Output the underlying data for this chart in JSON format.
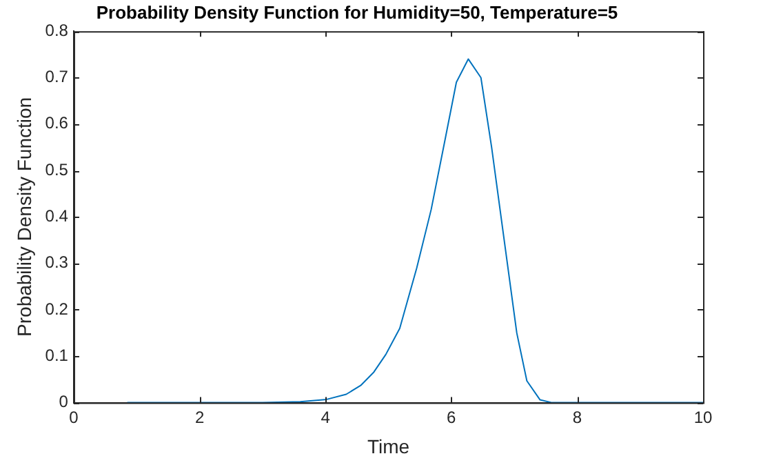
{
  "chart_data": {
    "type": "line",
    "title": "Probability Density Function for Humidity=50, Temperature=5",
    "xlabel": "Time",
    "ylabel": "Probability Density Function",
    "x": [
      0.85,
      2,
      3,
      3.6,
      4.02,
      4.33,
      4.56,
      4.77,
      4.96,
      5.18,
      5.45,
      5.68,
      5.91,
      6.08,
      6.27,
      6.47,
      6.64,
      6.85,
      7.04,
      7.2,
      7.41,
      7.6,
      8.5,
      10
    ],
    "series": [
      {
        "color": "#0072bd",
        "values": [
          0,
          0,
          0,
          0.002,
          0.007,
          0.018,
          0.037,
          0.066,
          0.104,
          0.16,
          0.29,
          0.416,
          0.573,
          0.69,
          0.74,
          0.7,
          0.55,
          0.34,
          0.15,
          0.047,
          0.006,
          0,
          0,
          0
        ]
      }
    ],
    "xlim": [
      0,
      10
    ],
    "xticks": [
      0,
      2,
      4,
      6,
      8,
      10
    ],
    "ylim": [
      0,
      0.8
    ],
    "yticks": [
      0,
      0.1,
      0.2,
      0.3,
      0.4,
      0.5,
      0.6,
      0.7,
      0.8
    ],
    "grid": false,
    "legend": false,
    "marker": "none",
    "line_style": "solid"
  }
}
